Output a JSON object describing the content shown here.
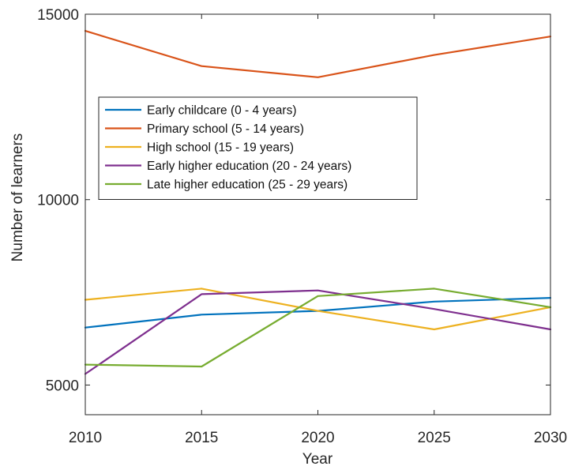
{
  "chart_data": {
    "type": "line",
    "title": "",
    "xlabel": "Year",
    "ylabel": "Number of learners",
    "xlim": [
      2010,
      2030
    ],
    "ylim": [
      4200,
      15000
    ],
    "x_ticks": [
      2010,
      2015,
      2020,
      2025,
      2030
    ],
    "y_ticks": [
      5000,
      10000,
      15000
    ],
    "grid": false,
    "legend_position": "upper-left",
    "x": [
      2010,
      2015,
      2020,
      2025,
      2030
    ],
    "series": [
      {
        "name": "Early childcare (0 - 4 years)",
        "color": "#0072BD",
        "values": [
          6550,
          6900,
          7000,
          7250,
          7350
        ]
      },
      {
        "name": "Primary school (5 - 14 years)",
        "color": "#D95319",
        "values": [
          14550,
          13600,
          13300,
          13900,
          14400
        ]
      },
      {
        "name": "High school (15 - 19 years)",
        "color": "#EDB120",
        "values": [
          7300,
          7600,
          7000,
          6500,
          7100
        ]
      },
      {
        "name": "Early higher education (20 - 24 years)",
        "color": "#7E2F8E",
        "values": [
          5300,
          7450,
          7550,
          7050,
          6500
        ]
      },
      {
        "name": "Late higher education (25 - 29 years)",
        "color": "#77AC30",
        "values": [
          5550,
          5500,
          7400,
          7600,
          7100
        ]
      }
    ]
  }
}
